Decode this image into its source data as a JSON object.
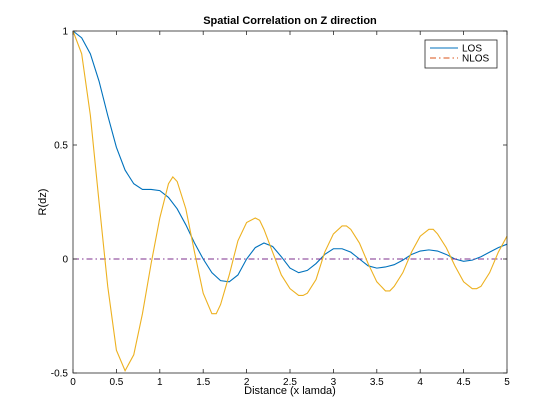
{
  "chart_data": {
    "type": "line",
    "title": "Spatial Correlation on Z direction",
    "xlabel": "Distance (x lamda)",
    "ylabel": "R(dz)",
    "xlim": [
      0,
      5
    ],
    "ylim": [
      -0.5,
      1
    ],
    "x_ticks": [
      "0",
      "0.5",
      "1",
      "1.5",
      "2",
      "2.5",
      "3",
      "3.5",
      "4",
      "4.5",
      "5"
    ],
    "y_ticks": [
      "-0.5",
      "0",
      "0.5",
      "1"
    ],
    "grid": false,
    "legend_position": "top-right",
    "series": [
      {
        "name": "LOS",
        "color": "#0072bd",
        "style": "solid",
        "x": [
          0,
          0.1,
          0.2,
          0.3,
          0.4,
          0.5,
          0.6,
          0.7,
          0.8,
          0.9,
          1.0,
          1.1,
          1.2,
          1.3,
          1.4,
          1.5,
          1.6,
          1.7,
          1.8,
          1.9,
          2.0,
          2.1,
          2.2,
          2.3,
          2.4,
          2.5,
          2.6,
          2.7,
          2.8,
          2.9,
          3.0,
          3.1,
          3.2,
          3.3,
          3.4,
          3.5,
          3.6,
          3.7,
          3.8,
          3.9,
          4.0,
          4.1,
          4.2,
          4.3,
          4.4,
          4.5,
          4.6,
          4.7,
          4.8,
          4.9,
          5.0
        ],
        "y": [
          1.0,
          0.97,
          0.9,
          0.78,
          0.63,
          0.49,
          0.39,
          0.33,
          0.305,
          0.305,
          0.3,
          0.27,
          0.22,
          0.15,
          0.07,
          0.0,
          -0.06,
          -0.095,
          -0.1,
          -0.07,
          0.0,
          0.05,
          0.07,
          0.055,
          0.01,
          -0.04,
          -0.06,
          -0.05,
          -0.02,
          0.02,
          0.045,
          0.045,
          0.03,
          0.0,
          -0.03,
          -0.04,
          -0.035,
          -0.025,
          -0.005,
          0.02,
          0.035,
          0.04,
          0.035,
          0.02,
          0.0,
          -0.01,
          -0.005,
          0.01,
          0.03,
          0.05,
          0.065
        ]
      },
      {
        "name": "NLOS",
        "color": "#d95319",
        "style": "dash-dot",
        "x": [
          0,
          5
        ],
        "y": [
          0,
          0
        ]
      },
      {
        "name": "",
        "color": "#7e2f8e",
        "style": "dash-dot",
        "x": [
          0,
          5
        ],
        "y": [
          0,
          0
        ]
      },
      {
        "name": "",
        "color": "#edb120",
        "style": "solid",
        "x": [
          0,
          0.1,
          0.2,
          0.3,
          0.4,
          0.5,
          0.6,
          0.7,
          0.8,
          0.9,
          1.0,
          1.1,
          1.15,
          1.2,
          1.3,
          1.4,
          1.5,
          1.6,
          1.65,
          1.7,
          1.8,
          1.9,
          2.0,
          2.1,
          2.15,
          2.2,
          2.3,
          2.4,
          2.5,
          2.6,
          2.65,
          2.7,
          2.8,
          2.9,
          3.0,
          3.1,
          3.15,
          3.2,
          3.3,
          3.4,
          3.5,
          3.6,
          3.65,
          3.7,
          3.8,
          3.9,
          4.0,
          4.1,
          4.15,
          4.2,
          4.3,
          4.4,
          4.5,
          4.6,
          4.65,
          4.7,
          4.8,
          4.9,
          5.0
        ],
        "y": [
          1.0,
          0.9,
          0.63,
          0.25,
          -0.12,
          -0.4,
          -0.49,
          -0.42,
          -0.24,
          -0.02,
          0.18,
          0.33,
          0.36,
          0.34,
          0.22,
          0.03,
          -0.15,
          -0.24,
          -0.24,
          -0.2,
          -0.07,
          0.08,
          0.16,
          0.18,
          0.17,
          0.13,
          0.03,
          -0.07,
          -0.13,
          -0.16,
          -0.16,
          -0.15,
          -0.09,
          0.03,
          0.11,
          0.145,
          0.145,
          0.13,
          0.07,
          -0.02,
          -0.1,
          -0.14,
          -0.14,
          -0.12,
          -0.06,
          0.03,
          0.1,
          0.13,
          0.13,
          0.11,
          0.05,
          -0.03,
          -0.1,
          -0.13,
          -0.13,
          -0.12,
          -0.06,
          0.03,
          0.1
        ]
      }
    ]
  }
}
